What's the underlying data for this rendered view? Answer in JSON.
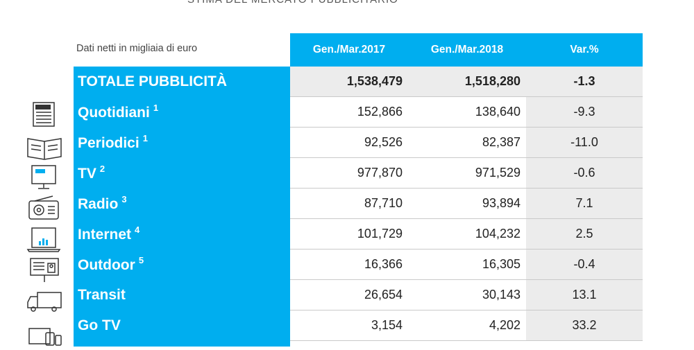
{
  "top_title": "STIMA DEL MERCATO PUBBLICITARIO",
  "units_note": "Dati netti in migliaia di euro",
  "columns": [
    "Gen./Mar.2017",
    "Gen./Mar.2018",
    "Var.%"
  ],
  "accent_color": "#00aeef",
  "rows": [
    {
      "label": "TOTALE PUBBLICITÀ",
      "note": "",
      "y2017": "1,538,479",
      "y2018": "1,518,280",
      "var": "-1.3",
      "icon": "none"
    },
    {
      "label": "Quotidiani",
      "note": "1",
      "y2017": "152,866",
      "y2018": "138,640",
      "var": "-9.3",
      "icon": "newspaper-icon"
    },
    {
      "label": "Periodici",
      "note": "1",
      "y2017": "92,526",
      "y2018": "82,387",
      "var": "-11.0",
      "icon": "magazine-icon"
    },
    {
      "label": "TV",
      "note": "2",
      "y2017": "977,870",
      "y2018": "971,529",
      "var": "-0.6",
      "icon": "tv-icon"
    },
    {
      "label": "Radio",
      "note": "3",
      "y2017": "87,710",
      "y2018": "93,894",
      "var": "7.1",
      "icon": "radio-icon"
    },
    {
      "label": "Internet",
      "note": "4",
      "y2017": "101,729",
      "y2018": "104,232",
      "var": "2.5",
      "icon": "laptop-icon"
    },
    {
      "label": "Outdoor",
      "note": "5",
      "y2017": "16,366",
      "y2018": "16,305",
      "var": "-0.4",
      "icon": "billboard-icon"
    },
    {
      "label": "Transit",
      "note": "",
      "y2017": "26,654",
      "y2018": "30,143",
      "var": "13.1",
      "icon": "truck-icon"
    },
    {
      "label": "Go TV",
      "note": "",
      "y2017": "3,154",
      "y2018": "4,202",
      "var": "33.2",
      "icon": "devices-icon"
    }
  ]
}
